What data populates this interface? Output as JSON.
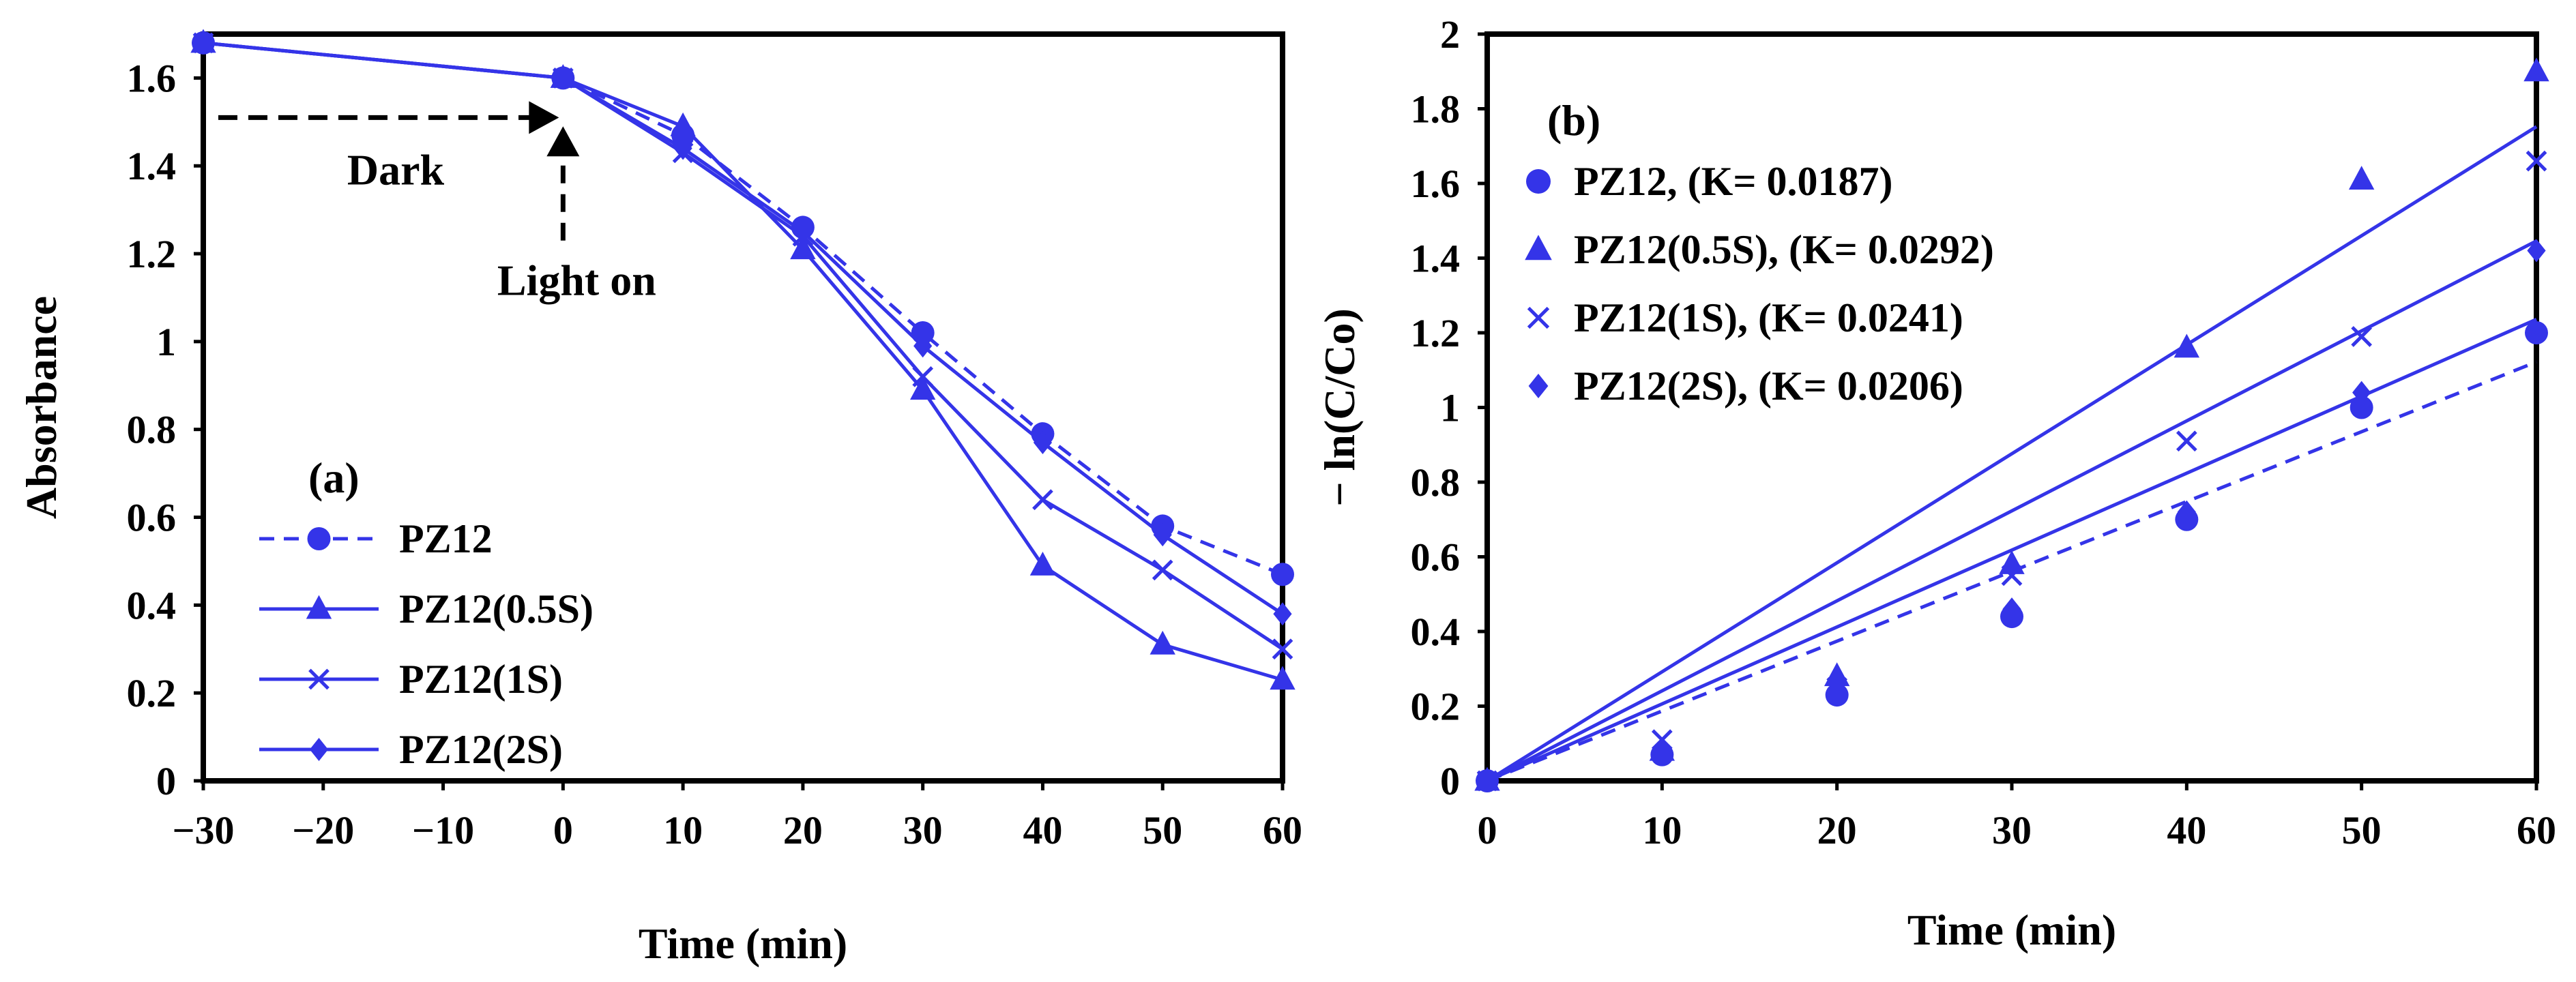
{
  "colors": {
    "series": "#3434e8",
    "axis": "#000000",
    "annotation": "#000000"
  },
  "chart_data": [
    {
      "type": "line",
      "panel_label": "(a)",
      "xlabel": "Time (min)",
      "ylabel": "Absorbance",
      "xlim": [
        -30,
        60
      ],
      "ylim": [
        0,
        1.7
      ],
      "x_ticks": [
        -30,
        -20,
        -10,
        0,
        10,
        20,
        30,
        40,
        50,
        60
      ],
      "x_tick_labels": [
        "−30",
        "−20",
        "−10",
        "0",
        "10",
        "20",
        "30",
        "40",
        "50",
        "60"
      ],
      "y_ticks": [
        0,
        0.2,
        0.4,
        0.6,
        0.8,
        1.0,
        1.2,
        1.4,
        1.6
      ],
      "y_tick_labels": [
        "0",
        "0.2",
        "0.4",
        "0.6",
        "0.8",
        "1",
        "1.2",
        "1.4",
        "1.6"
      ],
      "grid": false,
      "legend_position": "bottom-left",
      "x": [
        -30,
        0,
        10,
        20,
        30,
        40,
        50,
        60
      ],
      "series": [
        {
          "name": "PZ12",
          "marker": "circle",
          "line": "dashed",
          "values": [
            1.68,
            1.6,
            1.47,
            1.26,
            1.02,
            0.79,
            0.58,
            0.47
          ]
        },
        {
          "name": "PZ12(0.5S)",
          "marker": "triangle",
          "line": "solid",
          "values": [
            1.68,
            1.6,
            1.49,
            1.21,
            0.89,
            0.49,
            0.31,
            0.23
          ]
        },
        {
          "name": "PZ12(1S)",
          "marker": "x",
          "line": "solid",
          "values": [
            1.68,
            1.6,
            1.43,
            1.24,
            0.92,
            0.64,
            0.48,
            0.3
          ]
        },
        {
          "name": "PZ12(2S)",
          "marker": "diamond",
          "line": "solid",
          "values": [
            1.68,
            1.6,
            1.44,
            1.25,
            0.99,
            0.77,
            0.56,
            0.38
          ]
        }
      ],
      "annotations": [
        {
          "text": "Dark",
          "arrow_from_x": -30,
          "arrow_to_x": 0,
          "arrow_y": 1.51
        },
        {
          "text": "Light on",
          "arrow_x": 0,
          "arrow_from_y": 1.23,
          "arrow_to_y": 1.49
        }
      ]
    },
    {
      "type": "scatter",
      "panel_label": "(b)",
      "xlabel": "Time (min)",
      "ylabel": "− ln(C/Co)",
      "xlim": [
        0,
        60
      ],
      "ylim": [
        0,
        2
      ],
      "x_ticks": [
        0,
        10,
        20,
        30,
        40,
        50,
        60
      ],
      "x_tick_labels": [
        "0",
        "10",
        "20",
        "30",
        "40",
        "50",
        "60"
      ],
      "y_ticks": [
        0,
        0.2,
        0.4,
        0.6,
        0.8,
        1.0,
        1.2,
        1.4,
        1.6,
        1.8,
        2.0
      ],
      "y_tick_labels": [
        "0",
        "0.2",
        "0.4",
        "0.6",
        "0.8",
        "1",
        "1.2",
        "1.4",
        "1.6",
        "1.8",
        "2"
      ],
      "grid": false,
      "legend_position": "top-left",
      "x": [
        0,
        10,
        20,
        30,
        40,
        50,
        60
      ],
      "series": [
        {
          "name": "PZ12, (K= 0.0187)",
          "marker": "circle",
          "fit_line": "dashed",
          "k": 0.0187,
          "values": [
            0,
            0.07,
            0.23,
            0.44,
            0.7,
            1.0,
            1.2
          ]
        },
        {
          "name": "PZ12(0.5S), (K= 0.0292)",
          "marker": "triangle",
          "fit_line": "solid",
          "k": 0.0292,
          "values": [
            0,
            0.08,
            0.28,
            0.58,
            1.16,
            1.61,
            1.9
          ]
        },
        {
          "name": "PZ12(1S), (K= 0.0241)",
          "marker": "x",
          "fit_line": "solid",
          "k": 0.0241,
          "values": [
            0,
            0.11,
            0.25,
            0.55,
            0.91,
            1.19,
            1.66
          ]
        },
        {
          "name": "PZ12(2S), (K= 0.0206)",
          "marker": "diamond",
          "fit_line": "solid",
          "k": 0.0206,
          "values": [
            0,
            0.08,
            0.24,
            0.46,
            0.72,
            1.04,
            1.42
          ]
        }
      ]
    }
  ]
}
